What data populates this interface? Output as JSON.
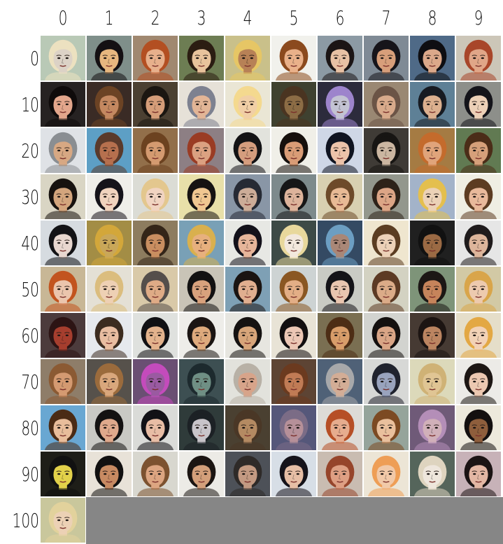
{
  "grid": {
    "column_labels": [
      "0",
      "1",
      "2",
      "3",
      "4",
      "5",
      "6",
      "7",
      "8",
      "9"
    ],
    "row_labels": [
      "0",
      "10",
      "20",
      "30",
      "40",
      "50",
      "60",
      "70",
      "80",
      "90",
      "100"
    ]
  },
  "tiles": [
    {
      "bg": "#b9c9b6",
      "skin": "#dcd2c6",
      "hair": "#ece1c0"
    },
    {
      "bg": "#7f8f8a",
      "skin": "#e7b77f",
      "hair": "#141013"
    },
    {
      "bg": "#a08870",
      "skin": "#e7b08c",
      "hair": "#b34f22"
    },
    {
      "bg": "#6d7d53",
      "skin": "#e8c39c",
      "hair": "#2b1d12"
    },
    {
      "bg": "#c9c08a",
      "skin": "#b78156",
      "hair": "#e6c665"
    },
    {
      "bg": "#f1f1ec",
      "skin": "#e9b18a",
      "hair": "#8b4a1e"
    },
    {
      "bg": "#8c9aa4",
      "skin": "#e8c1a4",
      "hair": "#1b1515"
    },
    {
      "bg": "#7f8a95",
      "skin": "#d79e7a",
      "hair": "#16141a"
    },
    {
      "bg": "#4f6a87",
      "skin": "#dba88a",
      "hair": "#0e0e12"
    },
    {
      "bg": "#ccc6b8",
      "skin": "#e0a688",
      "hair": "#a8462a"
    },
    {
      "bg": "#262222",
      "skin": "#e3a68c",
      "hair": "#0f0b0b"
    },
    {
      "bg": "#3a2b25",
      "skin": "#c48860",
      "hair": "#6c4324"
    },
    {
      "bg": "#4b4032",
      "skin": "#d59d79",
      "hair": "#1b1611"
    },
    {
      "bg": "#e6e1d8",
      "skin": "#e2b596",
      "hair": "#7d8190"
    },
    {
      "bg": "#eae6d5",
      "skin": "#f1cfa6",
      "hair": "#f4d98f"
    },
    {
      "bg": "#3f4130",
      "skin": "#8c6c45",
      "hair": "#4a3421"
    },
    {
      "bg": "#2c2b3c",
      "skin": "#c3c3d3",
      "hair": "#9d84cc"
    },
    {
      "bg": "#9a8873",
      "skin": "#d8aa8b",
      "hair": "#6b5446"
    },
    {
      "bg": "#5e8096",
      "skin": "#dcb08f",
      "hair": "#171b22"
    },
    {
      "bg": "#8d8f8a",
      "skin": "#ecd0b7",
      "hair": "#14141a"
    },
    {
      "bg": "#dfe2e6",
      "skin": "#d7a883",
      "hair": "#8a8e92"
    },
    {
      "bg": "#5d9fc5",
      "skin": "#b6704e",
      "hair": "#5a3a2b"
    },
    {
      "bg": "#926f4a",
      "skin": "#d49a70",
      "hair": "#6c4220"
    },
    {
      "bg": "#8d7f84",
      "skin": "#dba181",
      "hair": "#9a3c24"
    },
    {
      "bg": "#e2e3dd",
      "skin": "#d49d7e",
      "hair": "#131315"
    },
    {
      "bg": "#f0efe8",
      "skin": "#d99c76",
      "hair": "#16100d"
    },
    {
      "bg": "#cfd7e6",
      "skin": "#ecc3aa",
      "hair": "#101420"
    },
    {
      "bg": "#3f3b36",
      "skin": "#cbb6a1",
      "hair": "#171513"
    },
    {
      "bg": "#a57b43",
      "skin": "#e0a47b",
      "hair": "#c46b2c"
    },
    {
      "bg": "#617a52",
      "skin": "#d6a07a",
      "hair": "#4b2d18"
    },
    {
      "bg": "#d9d5c4",
      "skin": "#d3a57d",
      "hair": "#17120f"
    },
    {
      "bg": "#efeee9",
      "skin": "#f0d3be",
      "hair": "#15131a"
    },
    {
      "bg": "#dbdcd5",
      "skin": "#f1d4c1",
      "hair": "#e3c78e"
    },
    {
      "bg": "#e8e0a9",
      "skin": "#f0c791",
      "hair": "#161312"
    },
    {
      "bg": "#8996a6",
      "skin": "#ccac98",
      "hair": "#262a34"
    },
    {
      "bg": "#7d8a8c",
      "skin": "#ddb39b",
      "hair": "#161617"
    },
    {
      "bg": "#d8d0b1",
      "skin": "#e8ba95",
      "hair": "#6d4a2a"
    },
    {
      "bg": "#93978d",
      "skin": "#dca586",
      "hair": "#2d2219"
    },
    {
      "bg": "#a3b3c9",
      "skin": "#ecd2b7",
      "hair": "#e4bf4e"
    },
    {
      "bg": "#efeee3",
      "skin": "#e8b99b",
      "hair": "#5c3c22"
    },
    {
      "bg": "#d6dbe0",
      "skin": "#e8d7cf",
      "hair": "#131316"
    },
    {
      "bg": "#a38d45",
      "skin": "#c9a759",
      "hair": "#d3a73a"
    },
    {
      "bg": "#8d7c5f",
      "skin": "#c98e60",
      "hair": "#342518"
    },
    {
      "bg": "#79a0b6",
      "skin": "#e7b07e",
      "hair": "#d9b04e"
    },
    {
      "bg": "#e7e8e4",
      "skin": "#e6b59a",
      "hair": "#13111a"
    },
    {
      "bg": "#3d4a47",
      "skin": "#f2e8dd",
      "hair": "#e8d89c"
    },
    {
      "bg": "#344a63",
      "skin": "#a98777",
      "hair": "#6c9ec2"
    },
    {
      "bg": "#efe6cf",
      "skin": "#ecd1b8",
      "hair": "#5b3d22"
    },
    {
      "bg": "#202020",
      "skin": "#9b6a44",
      "hair": "#111111"
    },
    {
      "bg": "#e6e6e6",
      "skin": "#ddb59b",
      "hair": "#1f1b1c"
    },
    {
      "bg": "#c8b796",
      "skin": "#ebc5ad",
      "hair": "#c2541f"
    },
    {
      "bg": "#e4e0d5",
      "skin": "#eed0b4",
      "hair": "#dbbd7e"
    },
    {
      "bg": "#d9c9a8",
      "skin": "#dfab86",
      "hair": "#554e4b"
    },
    {
      "bg": "#c9c4b7",
      "skin": "#d8a27d",
      "hair": "#131212"
    },
    {
      "bg": "#7ea0b5",
      "skin": "#e0ae8f",
      "hair": "#1a1412"
    },
    {
      "bg": "#cdd3d3",
      "skin": "#e3ae86",
      "hair": "#8a5723"
    },
    {
      "bg": "#c9cbc4",
      "skin": "#e9c6b0",
      "hair": "#141418"
    },
    {
      "bg": "#d3d2c2",
      "skin": "#dbab88",
      "hair": "#5c3a24"
    },
    {
      "bg": "#7e9479",
      "skin": "#c6845b",
      "hair": "#1c1715"
    },
    {
      "bg": "#d2c9a5",
      "skin": "#edcaae",
      "hair": "#d9a54a"
    },
    {
      "bg": "#4c3b3c",
      "skin": "#a63e2e",
      "hair": "#2d1414"
    },
    {
      "bg": "#e6e9ee",
      "skin": "#e8bda1",
      "hair": "#3c2c20"
    },
    {
      "bg": "#dfe1de",
      "skin": "#e3b38d",
      "hair": "#101013"
    },
    {
      "bg": "#eeede9",
      "skin": "#deaa7d",
      "hair": "#1b1513"
    },
    {
      "bg": "#e7e6e0",
      "skin": "#d7a57a",
      "hair": "#151211"
    },
    {
      "bg": "#e8e3d6",
      "skin": "#ecc7b5",
      "hair": "#120f10"
    },
    {
      "bg": "#7a6f52",
      "skin": "#d89d6a",
      "hair": "#4d2d15"
    },
    {
      "bg": "#d2d3cf",
      "skin": "#d9a586",
      "hair": "#14100f"
    },
    {
      "bg": "#463a33",
      "skin": "#bc8561",
      "hair": "#1c1412"
    },
    {
      "bg": "#e5dec9",
      "skin": "#f2d2b7",
      "hair": "#e3a844"
    },
    {
      "bg": "#8e7d69",
      "skin": "#d49a71",
      "hair": "#8b5a33"
    },
    {
      "bg": "#56514b",
      "skin": "#d9a77c",
      "hair": "#9b6b3c"
    },
    {
      "bg": "#6a4f73",
      "skin": "#9a5aa1",
      "hair": "#c44bbc"
    },
    {
      "bg": "#3d4f52",
      "skin": "#6f8f84",
      "hair": "#1d2a2e"
    },
    {
      "bg": "#e2e2dc",
      "skin": "#d7a48a",
      "hair": "#b8b1a6"
    },
    {
      "bg": "#5d4434",
      "skin": "#c07b55",
      "hair": "#6b3a1f"
    },
    {
      "bg": "#4f6177",
      "skin": "#d3ad96",
      "hair": "#a7a8aa"
    },
    {
      "bg": "#d7d8d6",
      "skin": "#99a3bd",
      "hair": "#20232e"
    },
    {
      "bg": "#dcd9ba",
      "skin": "#e0c594",
      "hair": "#cfb276"
    },
    {
      "bg": "#ecebe7",
      "skin": "#ecc8b1",
      "hair": "#1d1714"
    },
    {
      "bg": "#69a7d2",
      "skin": "#e8bd9b",
      "hair": "#4a2b15"
    },
    {
      "bg": "#c9c9c4",
      "skin": "#dfa98c",
      "hair": "#141212"
    },
    {
      "bg": "#dadbd8",
      "skin": "#e8bda5",
      "hair": "#121116"
    },
    {
      "bg": "#2f3b3a",
      "skin": "#c8c4c9",
      "hair": "#1c2125"
    },
    {
      "bg": "#4a4031",
      "skin": "#b48a62",
      "hair": "#4a3726"
    },
    {
      "bg": "#55577a",
      "skin": "#b69099",
      "hair": "#7b6c86"
    },
    {
      "bg": "#dddbd6",
      "skin": "#e6ac8e",
      "hair": "#b64f26"
    },
    {
      "bg": "#95a49b",
      "skin": "#e9c09d",
      "hair": "#7c4a23"
    },
    {
      "bg": "#6f5a78",
      "skin": "#d1b0b9",
      "hair": "#b48eb8"
    },
    {
      "bg": "#ede9dc",
      "skin": "#8e5e3c",
      "hair": "#141010"
    },
    {
      "bg": "#1e1e18",
      "skin": "#e2d14a",
      "hair": "#111111"
    },
    {
      "bg": "#e8e2d8",
      "skin": "#c78a62",
      "hair": "#111010"
    },
    {
      "bg": "#d8d7cf",
      "skin": "#dca581",
      "hair": "#7c5230"
    },
    {
      "bg": "#ecebe6",
      "skin": "#d39f7a",
      "hair": "#1b1512"
    },
    {
      "bg": "#4d5158",
      "skin": "#c39a82",
      "hair": "#2e2a28"
    },
    {
      "bg": "#d7dee6",
      "skin": "#e6bea5",
      "hair": "#15131a"
    },
    {
      "bg": "#c9bcb1",
      "skin": "#de9f83",
      "hair": "#96452b"
    },
    {
      "bg": "#ece5d6",
      "skin": "#f1c9a8",
      "hair": "#ee9e56"
    },
    {
      "bg": "#55655b",
      "skin": "#eee6dc",
      "hair": "#ded4bf"
    },
    {
      "bg": "#c7b2b8",
      "skin": "#e3b7a4",
      "hair": "#1b1414"
    },
    {
      "bg": "#c9c79c",
      "skin": "#ecd1b5",
      "hair": "#e2d29c"
    }
  ]
}
